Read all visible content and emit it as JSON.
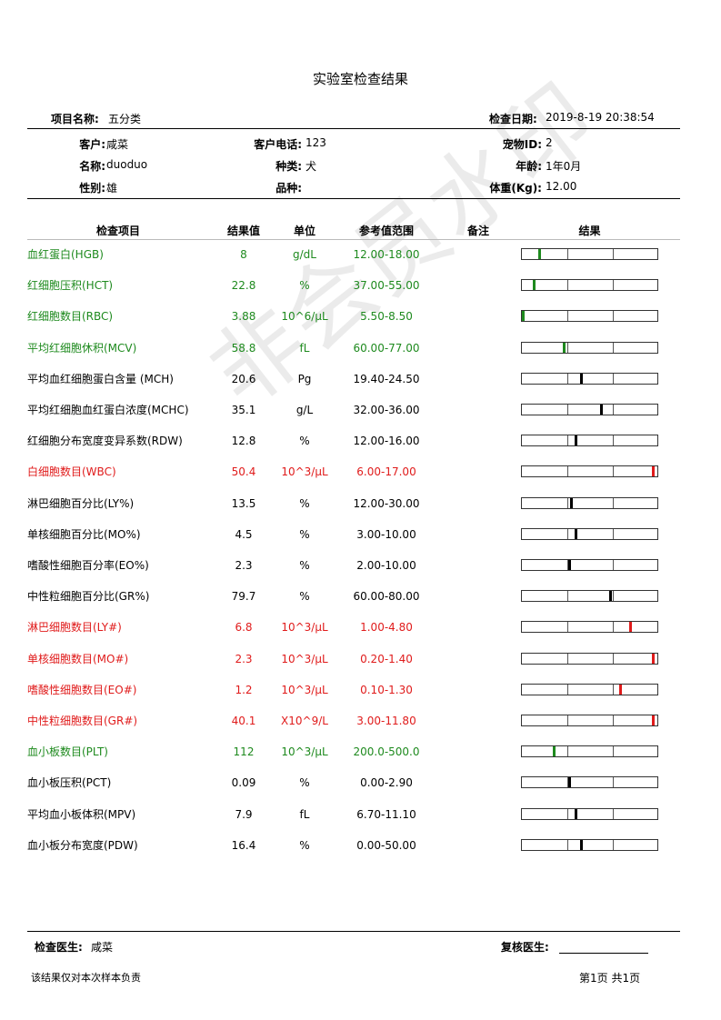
{
  "title": "实验室检查结果",
  "header": {
    "project_label": "项目名称:",
    "project_value": "五分类",
    "date_label": "检查日期:",
    "date_value": "2019-8-19 20:38:54",
    "customer_label": "客户:",
    "customer_value": "咸菜",
    "phone_label": "客户电话:",
    "phone_value": "123",
    "petid_label": "宠物ID:",
    "petid_value": "2",
    "name_label": "名称:",
    "name_value": "duoduo",
    "species_label": "种类:",
    "species_value": "犬",
    "age_label": "年龄:",
    "age_value": "1年0月",
    "sex_label": "性别:",
    "sex_value": "雄",
    "breed_label": "品种:",
    "breed_value": "",
    "weight_label": "体重(Kg):",
    "weight_value": "12.00"
  },
  "columns": {
    "item": "检查项目",
    "result": "结果值",
    "unit": "单位",
    "ref": "参考值范围",
    "note": "备注",
    "bar": "结果"
  },
  "colors": {
    "low": "#1e8a1e",
    "high": "#e01b1b",
    "normal": "#000000"
  },
  "rows": [
    {
      "name": "血红蛋白(HGB)",
      "value": "8",
      "unit": "g/dL",
      "ref": "12.00-18.00",
      "status": "low",
      "pos": 0.12
    },
    {
      "name": "红细胞压积(HCT)",
      "value": "22.8",
      "unit": "%",
      "ref": "37.00-55.00",
      "status": "low",
      "pos": 0.08
    },
    {
      "name": "红细胞数目(RBC)",
      "value": "3.88",
      "unit": "10^6/μL",
      "ref": "5.50-8.50",
      "status": "low",
      "pos": 0.0
    },
    {
      "name": "平均红细胞休积(MCV)",
      "value": "58.8",
      "unit": "fL",
      "ref": "60.00-77.00",
      "status": "low",
      "pos": 0.31
    },
    {
      "name": "平均血红细胞蛋白含量 (MCH)",
      "value": "20.6",
      "unit": "Pg",
      "ref": "19.40-24.50",
      "status": "normal",
      "pos": 0.44
    },
    {
      "name": "平均红细胞血红蛋白浓度(MCHC)",
      "value": "35.1",
      "unit": "g/L",
      "ref": "32.00-36.00",
      "status": "normal",
      "pos": 0.59
    },
    {
      "name": "红细胞分布宽度变异系数(RDW)",
      "value": "12.8",
      "unit": "%",
      "ref": "12.00-16.00",
      "status": "normal",
      "pos": 0.4
    },
    {
      "name": "白细胞数目(WBC)",
      "value": "50.4",
      "unit": "10^3/μL",
      "ref": "6.00-17.00",
      "status": "high",
      "pos": 0.98
    },
    {
      "name": "淋巴细胞百分比(LY%)",
      "value": "13.5",
      "unit": "%",
      "ref": "12.00-30.00",
      "status": "normal",
      "pos": 0.36
    },
    {
      "name": "单核细胞百分比(MO%)",
      "value": "4.5",
      "unit": "%",
      "ref": "3.00-10.00",
      "status": "normal",
      "pos": 0.4
    },
    {
      "name": "嗜酸性细胞百分率(EO%)",
      "value": "2.3",
      "unit": "%",
      "ref": "2.00-10.00",
      "status": "normal",
      "pos": 0.35
    },
    {
      "name": "中性粒细胞百分比(GR%)",
      "value": "79.7",
      "unit": "%",
      "ref": "60.00-80.00",
      "status": "normal",
      "pos": 0.66
    },
    {
      "name": "淋巴细胞数目(LY#)",
      "value": "6.8",
      "unit": "10^3/μL",
      "ref": "1.00-4.80",
      "status": "high",
      "pos": 0.81
    },
    {
      "name": "单核细胞数目(MO#)",
      "value": "2.3",
      "unit": "10^3/μL",
      "ref": "0.20-1.40",
      "status": "high",
      "pos": 0.98
    },
    {
      "name": "嗜酸性细胞数目(EO#)",
      "value": "1.2",
      "unit": "10^3/μL",
      "ref": "0.10-1.30",
      "status": "high",
      "pos": 0.73
    },
    {
      "name": "中性粒细胞数目(GR#)",
      "value": "40.1",
      "unit": "X10^9/L",
      "ref": "3.00-11.80",
      "status": "high",
      "pos": 0.98
    },
    {
      "name": "血小板数目(PLT)",
      "value": "112",
      "unit": "10^3/μL",
      "ref": "200.0-500.0",
      "status": "low",
      "pos": 0.23
    },
    {
      "name": "血小板压积(PCT)",
      "value": "0.09",
      "unit": "%",
      "ref": "0.00-2.90",
      "status": "normal",
      "pos": 0.35
    },
    {
      "name": "平均血小板体积(MPV)",
      "value": "7.9",
      "unit": "fL",
      "ref": "6.70-11.10",
      "status": "normal",
      "pos": 0.4
    },
    {
      "name": "血小板分布宽度(PDW)",
      "value": "16.4",
      "unit": "%",
      "ref": "0.00-50.00",
      "status": "normal",
      "pos": 0.44
    }
  ],
  "footer": {
    "doctor_label": "检查医生:",
    "doctor_value": "咸菜",
    "reviewer_label": "复核医生:",
    "disclaimer": "该结果仅对本次样本负责",
    "page": "第1页 共1页"
  },
  "watermark": "非会员水印"
}
